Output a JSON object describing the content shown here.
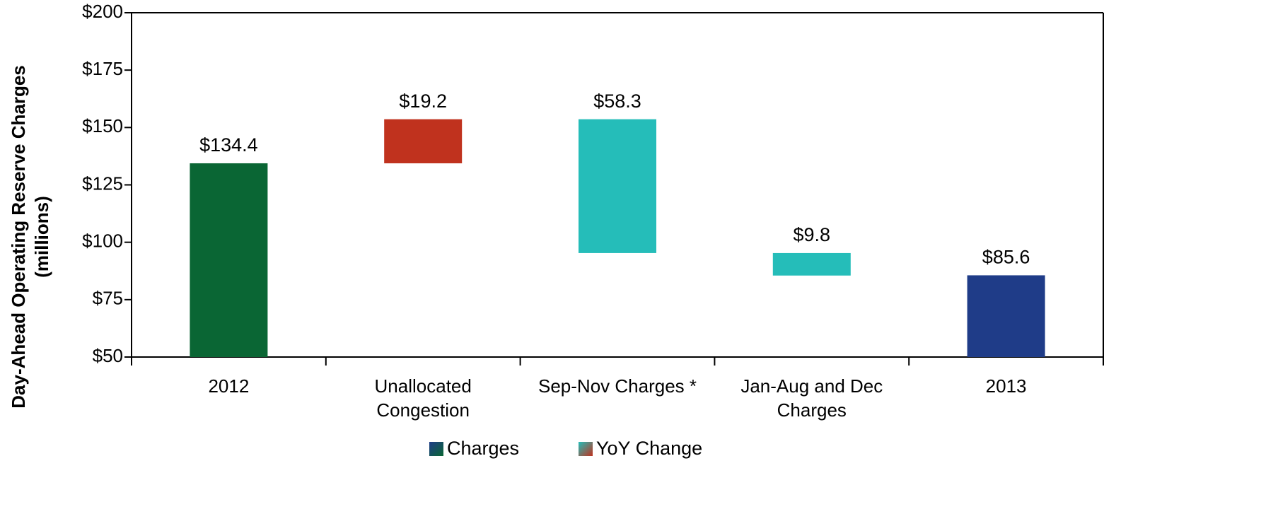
{
  "chart_data": {
    "type": "waterfall",
    "ylabel": [
      "Day-Ahead Operating Reserve Charges",
      "(millions)"
    ],
    "categories": [
      "2012",
      "Unallocated Congestion",
      "Sep-Nov Charges *",
      "Jan-Aug and Dec Charges",
      "2013"
    ],
    "values": [
      134.4,
      19.2,
      -58.3,
      -9.8,
      85.6
    ],
    "value_labels": [
      "$134.4",
      "$19.2",
      "$58.3",
      "$9.8",
      "$85.6"
    ],
    "colors": [
      "#0a6634",
      "#c0321e",
      "#25bdb9",
      "#25bdb9",
      "#1f3c88"
    ],
    "ylim": [
      50,
      200
    ],
    "yticks": [
      {
        "value": 50,
        "label": "$50"
      },
      {
        "value": 75,
        "label": "$75"
      },
      {
        "value": 100,
        "label": "$100"
      },
      {
        "value": 125,
        "label": "$125"
      },
      {
        "value": 150,
        "label": "$150"
      },
      {
        "value": 175,
        "label": "$175"
      },
      {
        "value": 200,
        "label": "$200"
      }
    ],
    "legend": [
      {
        "name": "Charges",
        "colors": [
          "#1f3c88",
          "#0a6634"
        ]
      },
      {
        "name": "YoY Change",
        "colors": [
          "#25bdb9",
          "#c0321e"
        ]
      }
    ]
  }
}
